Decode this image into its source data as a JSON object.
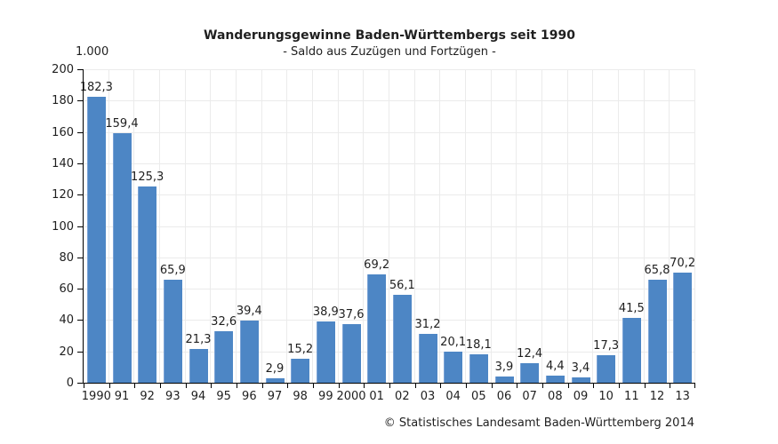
{
  "header": {
    "title": "Wanderungsgewinne Baden-Württembergs seit 1990",
    "subtitle": "- Saldo aus Zuzügen und Fortzügen -",
    "unit_label": "1.000"
  },
  "footer": {
    "copyright": "© Statistisches Landesamt Baden-Württemberg 2014"
  },
  "chart_data": {
    "type": "bar",
    "title": "Wanderungsgewinne Baden-Württembergs seit 1990",
    "subtitle": "- Saldo aus Zuzügen und Fortzügen -",
    "unit_label": "1.000",
    "ylabel": "",
    "xlabel": "",
    "categories": [
      "1990",
      "91",
      "92",
      "93",
      "94",
      "95",
      "96",
      "97",
      "98",
      "99",
      "2000",
      "01",
      "02",
      "03",
      "04",
      "05",
      "06",
      "07",
      "08",
      "09",
      "10",
      "11",
      "12",
      "13"
    ],
    "values": [
      182.3,
      159.4,
      125.3,
      65.9,
      21.3,
      32.6,
      39.4,
      2.9,
      15.2,
      38.9,
      37.6,
      69.2,
      56.1,
      31.2,
      20.1,
      18.1,
      3.9,
      12.4,
      4.4,
      3.4,
      17.3,
      41.5,
      65.8,
      70.2
    ],
    "value_labels": [
      "182,3",
      "159,4",
      "125,3",
      "65,9",
      "21,3",
      "32,6",
      "39,4",
      "2,9",
      "15,2",
      "38,9",
      "37,6",
      "69,2",
      "56,1",
      "31,2",
      "20,1",
      "18,1",
      "3,9",
      "12,4",
      "4,4",
      "3,4",
      "17,3",
      "41,5",
      "65,8",
      "70,2"
    ],
    "ylim": [
      0,
      200
    ],
    "ytick_step": 20,
    "grid": true,
    "legend": "none",
    "colors": {
      "bar": "#4d86c5",
      "bar_highlight": "#7ba3d6",
      "grid": "#ebebeb",
      "axis": "#000000",
      "text": "#1f1f1f"
    }
  }
}
